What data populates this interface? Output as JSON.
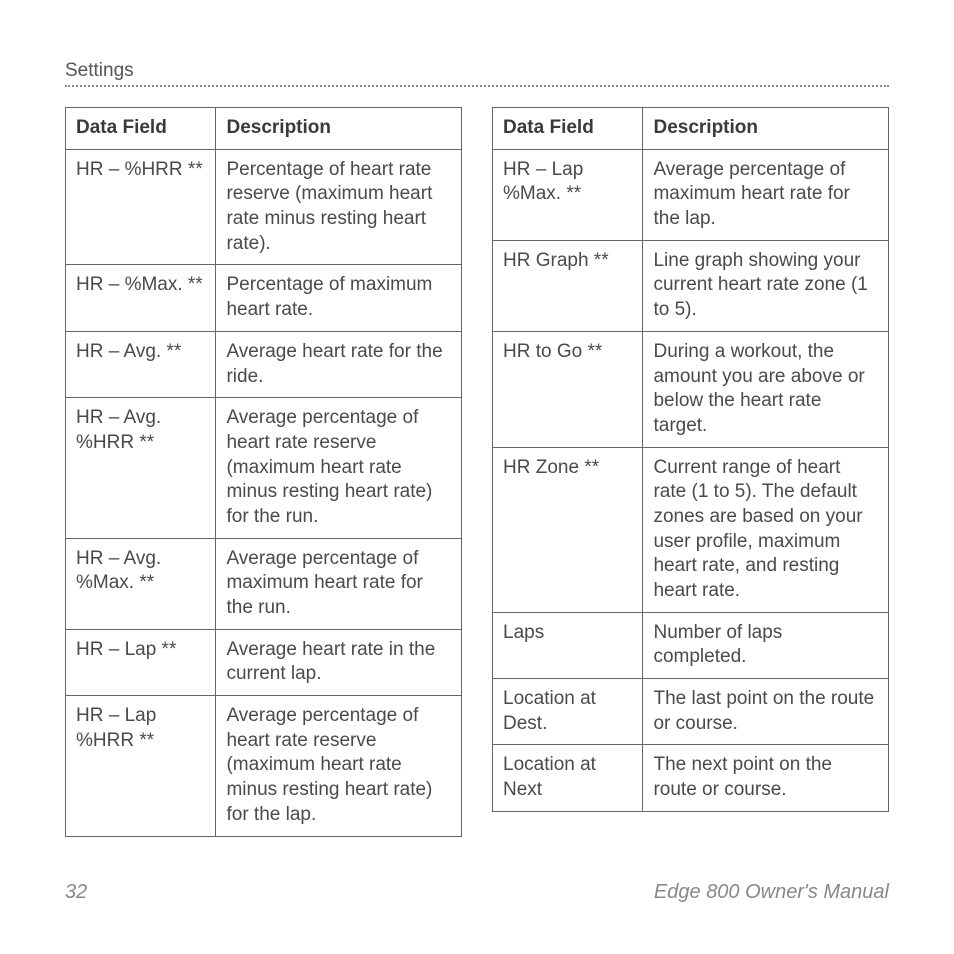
{
  "header": {
    "section": "Settings"
  },
  "left_table": {
    "headers": {
      "field": "Data Field",
      "desc": "Description"
    },
    "rows": [
      {
        "field": "HR – %HRR **",
        "desc": "Percentage of heart rate reserve (maximum heart rate minus resting heart rate)."
      },
      {
        "field": "HR – %Max. **",
        "desc": "Percentage of maximum heart rate."
      },
      {
        "field": "HR – Avg. **",
        "desc": "Average heart rate for the ride."
      },
      {
        "field": "HR – Avg. %HRR **",
        "desc": "Average percentage of heart rate reserve (maximum heart rate minus resting heart rate) for the run."
      },
      {
        "field": "HR – Avg. %Max. **",
        "desc": "Average percentage of maximum heart rate for the run."
      },
      {
        "field": "HR – Lap **",
        "desc": "Average heart rate in the current lap."
      },
      {
        "field": "HR – Lap %HRR **",
        "desc": "Average percentage of heart rate reserve (maximum heart rate minus resting heart rate) for the lap."
      }
    ]
  },
  "right_table": {
    "headers": {
      "field": "Data Field",
      "desc": "Description"
    },
    "rows": [
      {
        "field": "HR – Lap %Max. **",
        "desc": "Average percentage of maximum heart rate for the lap."
      },
      {
        "field": "HR Graph **",
        "desc": "Line graph showing your current heart rate zone (1 to 5)."
      },
      {
        "field": "HR to Go **",
        "desc": "During a workout, the amount you are above or below the heart rate target."
      },
      {
        "field": "HR Zone **",
        "desc": "Current range of heart rate (1 to 5). The default zones are based on your user profile, maximum heart rate, and resting heart rate."
      },
      {
        "field": "Laps",
        "desc": "Number of laps completed."
      },
      {
        "field": "Location at Dest.",
        "desc": "The last point on the route or course."
      },
      {
        "field": "Location at Next",
        "desc": "The next point on the route or course."
      }
    ]
  },
  "footer": {
    "page": "32",
    "title": "Edge 800 Owner's Manual"
  }
}
